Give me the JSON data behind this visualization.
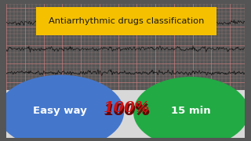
{
  "title": "Antiarrhythmic drugs classification",
  "title_bg": "#F5C000",
  "title_color": "#1a1a1a",
  "bg_color": "#f5c0c0",
  "grid_minor_color": "#e8a0a0",
  "grid_major_color": "#d08080",
  "ecg_color": "#111111",
  "left_ellipse_color": "#4477cc",
  "right_ellipse_color": "#22aa44",
  "left_text": "Easy way",
  "right_text": "15 min",
  "center_text": "100%",
  "center_text_color": "#cc1111",
  "bottom_bar_color": "#d8d8d8",
  "text_color": "#ffffff",
  "border_color": "#555555",
  "border_width": 6
}
